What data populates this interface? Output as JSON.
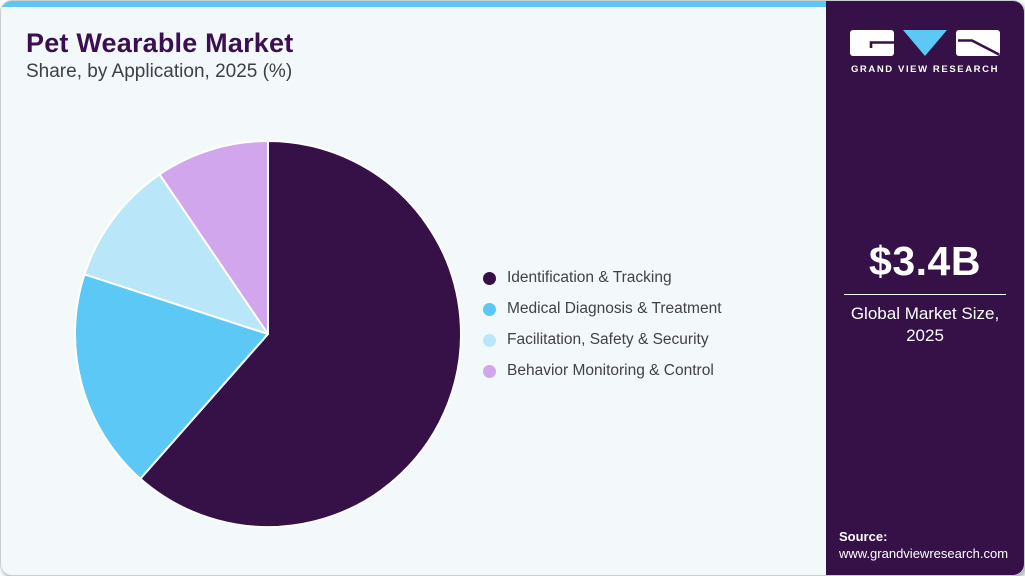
{
  "header": {
    "title": "Pet Wearable Market",
    "subtitle": "Share, by Application, 2025 (%)"
  },
  "chart_data": {
    "type": "pie",
    "title": "Pet Wearable Market Share, by Application, 2025 (%)",
    "categories": [
      "Identification & Tracking",
      "Medical Diagnosis & Treatment",
      "Facilitation, Safety & Security",
      "Behavior Monitoring & Control"
    ],
    "values": [
      61.5,
      18.5,
      10.5,
      9.5
    ],
    "unit": "%",
    "colors": [
      "#361148",
      "#5BC8F5",
      "#BAE6F9",
      "#D2A6EC"
    ],
    "start_angle_deg": 0,
    "direction": "clockwise",
    "legend_position": "right",
    "data_labels": false
  },
  "sidebar": {
    "logo_wordmark": "GRAND VIEW RESEARCH",
    "market_size_value": "$3.4B",
    "market_size_label": "Global Market Size, 2025",
    "source_label": "Source:",
    "source_url": "www.grandviewresearch.com"
  },
  "theme": {
    "accent_bar": "#5EC6EF",
    "panel_bg": "#F3F8FB",
    "sidebar_bg": "#361148",
    "title_color": "#3A1053",
    "text_color": "#414146",
    "logo_triangle": "#5BC8F5"
  }
}
